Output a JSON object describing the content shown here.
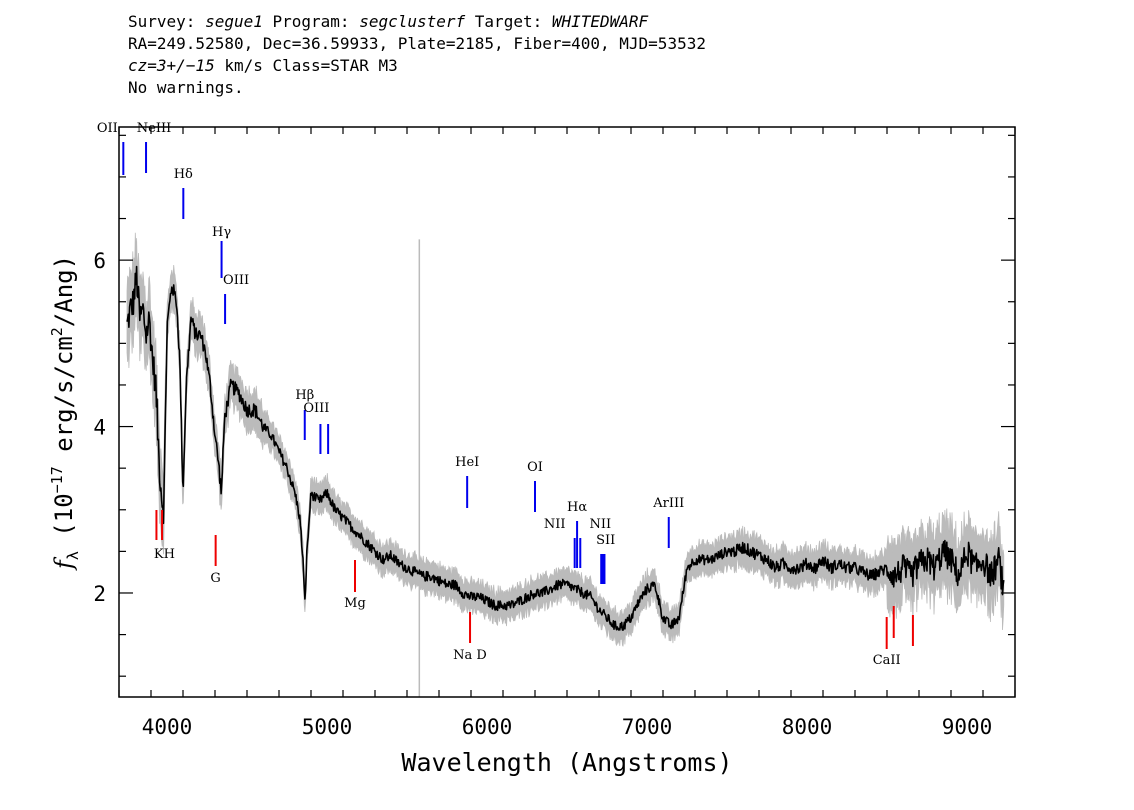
{
  "header": {
    "survey_label": "Survey: ",
    "survey": "segue1",
    "program_label": " Program: ",
    "program": "segclusterf",
    "target_label": " Target: ",
    "target": "WHITEDWARF",
    "line2": "RA=249.52580, Dec=36.59933, Plate=2185, Fiber=400, MJD=53532",
    "cz": "cz=3+/−15",
    "cz_units": " km/s Class=STAR M3",
    "line4": "No warnings."
  },
  "colors": {
    "emission": "#0000ee",
    "absorption": "#ee0000",
    "flux": "#000000",
    "error": "#bbbbbb"
  },
  "chart_data": {
    "type": "line",
    "xlabel": "Wavelength (Angstroms)",
    "ylabel_parts": [
      "f",
      "λ",
      " (10",
      "−17",
      " erg/s/cm",
      "2",
      "/Ang)"
    ],
    "xlim": [
      3700,
      9300
    ],
    "ylim": [
      0.75,
      7.6
    ],
    "xticks": [
      4000,
      5000,
      6000,
      7000,
      8000,
      9000
    ],
    "yticks": [
      2,
      4,
      6
    ],
    "series": [
      {
        "x": [
          3750,
          3770,
          3790,
          3810,
          3830,
          3850,
          3870,
          3890,
          3910,
          3930,
          3950,
          3965,
          3980,
          4000,
          4030,
          4060,
          4080,
          4100,
          4120,
          4150,
          4180,
          4210,
          4240,
          4270,
          4300,
          4320,
          4340,
          4360,
          4400,
          4450,
          4500,
          4550,
          4600,
          4650,
          4700,
          4750,
          4800,
          4830,
          4850,
          4861,
          4875,
          4900,
          4950,
          5000,
          5050,
          5100,
          5150,
          5200,
          5250,
          5300,
          5350,
          5400,
          5450,
          5500,
          5550,
          5600,
          5650,
          5700,
          5750,
          5800,
          5850,
          5900,
          5950,
          6000,
          6050,
          6100,
          6150,
          6200,
          6250,
          6300,
          6350,
          6400,
          6450,
          6500,
          6550,
          6600,
          6650,
          6700,
          6750,
          6800,
          6850,
          6900,
          6950,
          7000,
          7050,
          7100,
          7150,
          7200,
          7250,
          7300,
          7350,
          7400,
          7450,
          7500,
          7550,
          7600,
          7650,
          7700,
          7750,
          7800,
          7850,
          7900,
          7950,
          8000,
          8050,
          8100,
          8150,
          8200,
          8250,
          8300,
          8350,
          8400,
          8450,
          8500,
          8550,
          8600,
          8650,
          8700,
          8750,
          8800,
          8850,
          8900,
          8950,
          9000,
          9050,
          9100,
          9150,
          9200,
          9230
        ],
        "y": [
          5.2,
          5.4,
          5.5,
          5.8,
          5.3,
          5.4,
          5.1,
          5.3,
          4.8,
          4.5,
          3.6,
          3.2,
          3.0,
          5.2,
          5.7,
          5.5,
          4.8,
          3.2,
          4.5,
          5.3,
          5.1,
          5.1,
          4.9,
          4.5,
          3.9,
          3.6,
          3.2,
          4.1,
          4.5,
          4.4,
          4.2,
          4.2,
          4.0,
          3.9,
          3.7,
          3.5,
          3.2,
          2.9,
          2.4,
          1.85,
          2.5,
          3.2,
          3.1,
          3.2,
          3.0,
          2.9,
          2.8,
          2.7,
          2.6,
          2.5,
          2.4,
          2.45,
          2.35,
          2.3,
          2.25,
          2.2,
          2.2,
          2.15,
          2.1,
          2.1,
          2.0,
          1.95,
          1.95,
          1.9,
          1.85,
          1.85,
          1.85,
          1.9,
          1.95,
          2.0,
          2.0,
          2.05,
          2.1,
          2.1,
          2.05,
          2.0,
          1.95,
          1.8,
          1.7,
          1.6,
          1.6,
          1.7,
          1.9,
          2.05,
          2.1,
          1.7,
          1.6,
          1.7,
          2.3,
          2.4,
          2.4,
          2.4,
          2.45,
          2.5,
          2.5,
          2.55,
          2.5,
          2.45,
          2.4,
          2.3,
          2.35,
          2.3,
          2.3,
          2.35,
          2.3,
          2.4,
          2.3,
          2.35,
          2.3,
          2.3,
          2.25,
          2.2,
          2.25,
          2.3,
          2.2,
          2.3,
          2.2,
          2.35,
          2.4,
          2.3,
          2.5,
          2.4,
          2.2,
          2.5,
          2.3,
          2.4,
          2.2,
          2.4,
          2.0
        ]
      }
    ],
    "line_markers": [
      {
        "label": "OII",
        "x": 3727,
        "kind": "emission"
      },
      {
        "label": "NeIII",
        "x": 3869,
        "kind": "emission"
      },
      {
        "label": "Hδ",
        "x": 4102,
        "kind": "emission"
      },
      {
        "label": "Hγ",
        "x": 4341,
        "kind": "emission"
      },
      {
        "label": "OIII",
        "x": 4363,
        "kind": "emission"
      },
      {
        "label": "Hβ",
        "x": 4861,
        "kind": "emission"
      },
      {
        "label": "OIII",
        "x": 4959,
        "kind": "emission"
      },
      {
        "label": "",
        "x": 5007,
        "kind": "emission"
      },
      {
        "label": "HeI",
        "x": 5876,
        "kind": "emission"
      },
      {
        "label": "OI",
        "x": 6300,
        "kind": "emission"
      },
      {
        "label": "NII",
        "x": 6548,
        "kind": "emission"
      },
      {
        "label": "Hα",
        "x": 6563,
        "kind": "emission"
      },
      {
        "label": "NII",
        "x": 6583,
        "kind": "emission"
      },
      {
        "label": "SII",
        "x": 6717,
        "kind": "emission"
      },
      {
        "label": "",
        "x": 6731,
        "kind": "emission"
      },
      {
        "label": "ArIII",
        "x": 7136,
        "kind": "emission"
      },
      {
        "label": "KH",
        "x": 3934,
        "kind": "absorption"
      },
      {
        "label": "",
        "x": 3969,
        "kind": "absorption"
      },
      {
        "label": "G",
        "x": 4304,
        "kind": "absorption"
      },
      {
        "label": "Mg",
        "x": 5175,
        "kind": "absorption"
      },
      {
        "label": "Na D",
        "x": 5894,
        "kind": "absorption"
      },
      {
        "label": "CaII",
        "x": 8498,
        "kind": "absorption"
      },
      {
        "label": "",
        "x": 8542,
        "kind": "absorption"
      },
      {
        "label": "",
        "x": 8662,
        "kind": "absorption"
      }
    ]
  }
}
